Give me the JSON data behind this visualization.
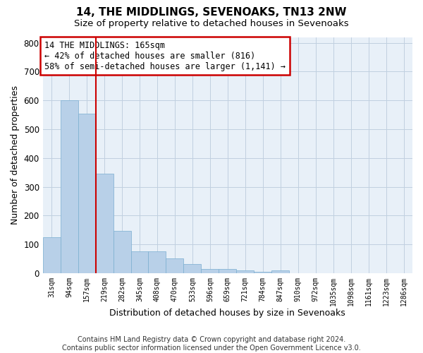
{
  "title": "14, THE MIDDLINGS, SEVENOAKS, TN13 2NW",
  "subtitle": "Size of property relative to detached houses in Sevenoaks",
  "xlabel": "Distribution of detached houses by size in Sevenoaks",
  "ylabel": "Number of detached properties",
  "categories": [
    "31sqm",
    "94sqm",
    "157sqm",
    "219sqm",
    "282sqm",
    "345sqm",
    "408sqm",
    "470sqm",
    "533sqm",
    "596sqm",
    "659sqm",
    "721sqm",
    "784sqm",
    "847sqm",
    "910sqm",
    "972sqm",
    "1035sqm",
    "1098sqm",
    "1161sqm",
    "1223sqm",
    "1286sqm"
  ],
  "values": [
    125,
    600,
    555,
    345,
    148,
    75,
    75,
    52,
    32,
    15,
    15,
    9,
    5,
    10,
    0,
    0,
    0,
    0,
    0,
    0,
    0
  ],
  "bar_color": "#b8d0e8",
  "bar_edge_color": "#7aaed0",
  "vline_color": "#cc0000",
  "annotation_text": "14 THE MIDDLINGS: 165sqm\n← 42% of detached houses are smaller (816)\n58% of semi-detached houses are larger (1,141) →",
  "annotation_box_color": "#cc0000",
  "ylim": [
    0,
    820
  ],
  "yticks": [
    0,
    100,
    200,
    300,
    400,
    500,
    600,
    700,
    800
  ],
  "grid_color": "#c0d0e0",
  "bg_color": "#e8f0f8",
  "footer": "Contains HM Land Registry data © Crown copyright and database right 2024.\nContains public sector information licensed under the Open Government Licence v3.0.",
  "title_fontsize": 11,
  "subtitle_fontsize": 9.5,
  "xlabel_fontsize": 9,
  "ylabel_fontsize": 9,
  "annotation_fontsize": 8.5,
  "footer_fontsize": 7
}
